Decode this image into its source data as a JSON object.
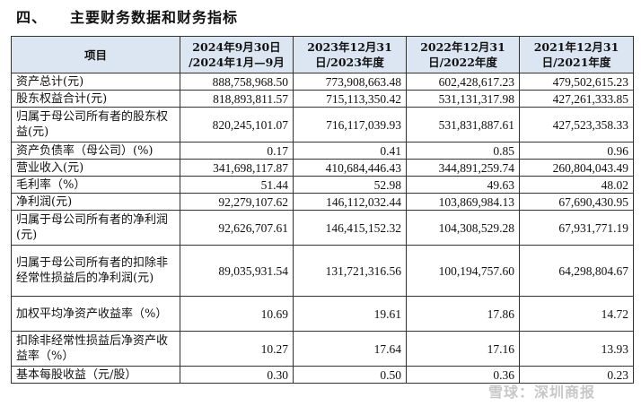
{
  "section": {
    "number": "四、",
    "title": "主要财务数据和财务指标"
  },
  "table": {
    "headers": [
      "项目",
      "2024年9月30日\n/2024年1月—9月",
      "2023年12月31\n日/2023年度",
      "2022年12月31\n日/2022年度",
      "2021年12月31\n日/2021年度"
    ],
    "rows": [
      {
        "label": "资产总计(元)",
        "values": [
          "888,758,968.50",
          "773,908,663.48",
          "602,428,617.23",
          "479,502,615.23"
        ]
      },
      {
        "label": "股东权益合计(元)",
        "values": [
          "818,893,811.57",
          "715,113,350.42",
          "531,131,317.98",
          "427,261,333.85"
        ]
      },
      {
        "label": "归属于母公司所有者的股东权益(元)",
        "values": [
          "820,245,101.07",
          "716,117,039.93",
          "531,831,887.61",
          "427,523,358.33"
        ]
      },
      {
        "label": "资产负债率（母公司）(%)",
        "values": [
          "0.17",
          "0.41",
          "0.85",
          "0.96"
        ]
      },
      {
        "label": "营业收入(元)",
        "values": [
          "341,698,117.87",
          "410,684,446.43",
          "344,891,259.74",
          "260,804,043.49"
        ]
      },
      {
        "label": "毛利率（%）",
        "values": [
          "51.44",
          "52.98",
          "49.63",
          "48.02"
        ]
      },
      {
        "label": "净利润(元)",
        "values": [
          "92,279,107.62",
          "146,112,032.44",
          "103,869,984.13",
          "67,690,430.95"
        ]
      },
      {
        "label": "归属于母公司所有者的净利润(元)",
        "values": [
          "92,626,707.61",
          "146,415,152.32",
          "104,308,529.28",
          "67,931,771.19"
        ]
      },
      {
        "label": "归属于母公司所有者的扣除非经常性损益后的净利润(元)",
        "values": [
          "89,035,931.54",
          "131,721,316.56",
          "100,194,757.60",
          "64,298,804.67"
        ]
      },
      {
        "label": "加权平均净资产收益率（%）",
        "values": [
          "10.69",
          "19.61",
          "17.86",
          "14.72"
        ]
      },
      {
        "label": "扣除非经常性损益后净资产收益率（%）",
        "values": [
          "10.27",
          "17.64",
          "17.16",
          "13.93"
        ]
      },
      {
        "label": "基本每股收益（元/股）",
        "values": [
          "0.30",
          "0.50",
          "0.36",
          "0.23"
        ]
      }
    ]
  },
  "watermark": "雪球：深圳商报"
}
